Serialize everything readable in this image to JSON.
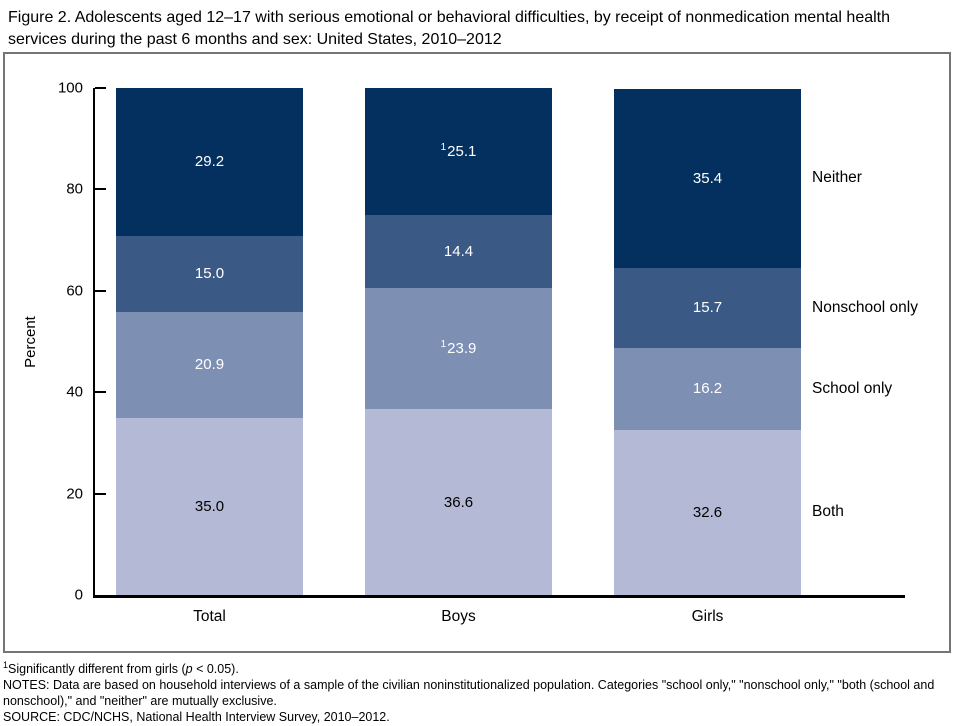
{
  "title": "Figure 2. Adolescents aged 12–17 with serious emotional or behavioral difficulties, by receipt of nonmedication mental health services during the past 6 months and sex: United States, 2010–2012",
  "chart_data": {
    "type": "stacked-bar",
    "categories": [
      "Total",
      "Boys",
      "Girls"
    ],
    "series": [
      {
        "name": "Both",
        "color": "#b4bad6",
        "label_color": "#000000",
        "values": [
          35.0,
          36.6,
          32.6
        ],
        "display": [
          "35.0",
          "36.6",
          "32.6"
        ],
        "sup": [
          "",
          "",
          ""
        ]
      },
      {
        "name": "School only",
        "color": "#7e8fb4",
        "label_color": "#ffffff",
        "values": [
          20.9,
          23.9,
          16.2
        ],
        "display": [
          "20.9",
          "23.9",
          "16.2"
        ],
        "sup": [
          "",
          "1",
          ""
        ]
      },
      {
        "name": "Nonschool only",
        "color": "#3a5a85",
        "label_color": "#ffffff",
        "values": [
          15.0,
          14.4,
          15.7
        ],
        "display": [
          "15.0",
          "14.4",
          "15.7"
        ],
        "sup": [
          "",
          "",
          ""
        ]
      },
      {
        "name": "Neither",
        "color": "#03305f",
        "label_color": "#ffffff",
        "values": [
          29.2,
          25.1,
          35.4
        ],
        "display": [
          "29.2",
          "25.1",
          "35.4"
        ],
        "sup": [
          "",
          "1",
          ""
        ]
      }
    ],
    "ylabel": "Percent",
    "yticks": [
      0,
      20,
      40,
      60,
      80,
      100
    ],
    "ylim": [
      0,
      100
    ],
    "grid": false,
    "legend_position": "right-of-last-bar",
    "right_labels": [
      "Neither",
      "Nonschool only",
      "School only",
      "Both"
    ]
  },
  "footnotes": {
    "sig": {
      "sup": "1",
      "pre": "Significantly different from girls (",
      "italic": "p",
      "post": " < 0.05)."
    },
    "notes": "NOTES: Data are based on household interviews of a sample of the civilian noninstitutionalized population. Categories \"school only,\" \"nonschool only,\" \"both (school and nonschool),\" and \"neither\" are mutually exclusive.",
    "source": "SOURCE: CDC/NCHS, National Health Interview Survey, 2010–2012."
  },
  "colors": {
    "neither": "#03305f",
    "nonschool_only": "#3a5a85",
    "school_only": "#7e8fb4",
    "both": "#b4bad6",
    "axis": "#000000",
    "box_border": "#757575"
  }
}
